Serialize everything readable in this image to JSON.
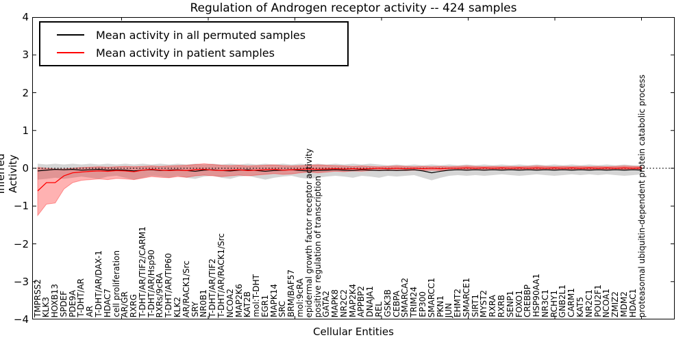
{
  "title": "Regulation of Androgen receptor activity -- 424 samples",
  "axes": {
    "xlabel": "Cellular Entities",
    "ylabel": "Inferred Activity",
    "yticks": [
      "4",
      "3",
      "2",
      "1",
      "0",
      "−1",
      "−2",
      "−3",
      "−4"
    ],
    "ylim": [
      -4,
      4
    ],
    "grid": false
  },
  "legend": {
    "position": "upper-left",
    "items": [
      {
        "label": "Mean activity in all permuted samples",
        "color": "#000000"
      },
      {
        "label": "Mean activity in patient samples",
        "color": "#ff0000"
      }
    ]
  },
  "chart_data": {
    "type": "line",
    "title": "Regulation of Androgen receptor activity -- 424 samples",
    "xlabel": "Cellular Entities",
    "ylabel": "Inferred Activity",
    "ylim": [
      -4,
      4
    ],
    "zero_line_dotted": true,
    "categories": [
      "TMPRSS2",
      "KLK3",
      "HOXB13",
      "SPDEF",
      "PDE9A",
      "T-DHT/AR",
      "AR",
      "T-DHT/AR/DAX-1",
      "HDAC7",
      "cell proliferation",
      "AR/GR",
      "RXRG",
      "T-DHT/AR/TIF2/CARM1",
      "T-DHT/AR/Hsp90",
      "RXRs/9cRA",
      "T-DHT/AR/TIP60",
      "KLK2",
      "AR/RACK1/Src",
      "SRY",
      "NR0B1",
      "T-DHT/AR/TIF2",
      "T-DHT/AR/RACK1/Src",
      "NCOA2",
      "MAP2K6",
      "KAT2B",
      "mol:T-DHT",
      "EGR1",
      "MAPK14",
      "SRC",
      "BRM/BAF57",
      "mol:9cRA",
      "epidermal growth factor receptor activity",
      "positive regulation of transcription",
      "GATA2",
      "MAPK8",
      "NR2C2",
      "MAP2K4",
      "APPBP2",
      "DNAJA1",
      "REL",
      "GSK3B",
      "CEBPA",
      "SMARCA2",
      "TRIM24",
      "EP300",
      "SMARCC1",
      "PKN1",
      "JUN",
      "EHMT2",
      "SMARCE1",
      "SIRT1",
      "MYST2",
      "RXRA",
      "RXRB",
      "SENP1",
      "FOXO1",
      "CREBBP",
      "HSP90AA1",
      "NR3C1",
      "RCHY1",
      "GNB2L1",
      "CARM1",
      "KAT5",
      "NR2C1",
      "POU2F1",
      "NCOA1",
      "ZMIZ2",
      "MDM2",
      "HDAC1",
      "proteasomal ubiquitin-dependent protein catabolic process"
    ],
    "series": [
      {
        "name": "Mean activity in all permuted samples",
        "color": "#000000",
        "band_color": "#888888",
        "values": [
          -0.07,
          -0.05,
          -0.03,
          -0.04,
          -0.03,
          -0.05,
          -0.04,
          -0.03,
          -0.05,
          -0.04,
          -0.05,
          -0.07,
          -0.05,
          -0.04,
          -0.06,
          -0.05,
          -0.04,
          -0.06,
          -0.08,
          -0.05,
          -0.04,
          -0.06,
          -0.07,
          -0.05,
          -0.04,
          -0.06,
          -0.08,
          -0.06,
          -0.05,
          -0.04,
          -0.06,
          -0.07,
          -0.06,
          -0.05,
          -0.04,
          -0.05,
          -0.06,
          -0.04,
          -0.05,
          -0.06,
          -0.05,
          -0.06,
          -0.05,
          -0.04,
          -0.07,
          -0.12,
          -0.08,
          -0.05,
          -0.04,
          -0.05,
          -0.04,
          -0.05,
          -0.04,
          -0.05,
          -0.04,
          -0.05,
          -0.04,
          -0.05,
          -0.04,
          -0.05,
          -0.04,
          -0.05,
          -0.04,
          -0.05,
          -0.04,
          -0.05,
          -0.04,
          -0.05,
          -0.04,
          -0.05
        ],
        "band_low": [
          -0.3,
          -0.28,
          -0.25,
          -0.28,
          -0.25,
          -0.22,
          -0.25,
          -0.28,
          -0.22,
          -0.2,
          -0.25,
          -0.3,
          -0.25,
          -0.2,
          -0.22,
          -0.25,
          -0.2,
          -0.25,
          -0.28,
          -0.22,
          -0.2,
          -0.25,
          -0.28,
          -0.22,
          -0.2,
          -0.25,
          -0.3,
          -0.25,
          -0.22,
          -0.2,
          -0.25,
          -0.28,
          -0.25,
          -0.22,
          -0.2,
          -0.22,
          -0.25,
          -0.2,
          -0.22,
          -0.25,
          -0.2,
          -0.22,
          -0.2,
          -0.18,
          -0.25,
          -0.32,
          -0.25,
          -0.2,
          -0.18,
          -0.2,
          -0.18,
          -0.2,
          -0.18,
          -0.16,
          -0.18,
          -0.2,
          -0.18,
          -0.16,
          -0.18,
          -0.2,
          -0.18,
          -0.16,
          -0.18,
          -0.16,
          -0.18,
          -0.16,
          -0.18,
          -0.2,
          -0.18,
          -0.16
        ],
        "band_high": [
          0.12,
          0.1,
          0.12,
          0.1,
          0.12,
          0.1,
          0.12,
          0.1,
          0.12,
          0.1,
          0.12,
          0.1,
          0.12,
          0.1,
          0.12,
          0.1,
          0.12,
          0.1,
          0.12,
          0.1,
          0.12,
          0.1,
          0.12,
          0.1,
          0.12,
          0.1,
          0.12,
          0.1,
          0.12,
          0.1,
          0.12,
          0.1,
          0.12,
          0.1,
          0.12,
          0.1,
          0.12,
          0.1,
          0.12,
          0.1,
          0.08,
          0.1,
          0.08,
          0.1,
          0.08,
          0.1,
          0.08,
          0.1,
          0.08,
          0.1,
          0.08,
          0.1,
          0.08,
          0.1,
          0.08,
          0.1,
          0.08,
          0.1,
          0.08,
          0.1,
          0.08,
          0.1,
          0.08,
          0.1,
          0.08,
          0.1,
          0.08,
          0.1,
          0.08,
          0.08
        ]
      },
      {
        "name": "Mean activity in patient samples",
        "color": "#ff0000",
        "band_color": "#ff0000",
        "values": [
          -0.6,
          -0.38,
          -0.38,
          -0.2,
          -0.12,
          -0.1,
          -0.08,
          -0.07,
          -0.08,
          -0.06,
          -0.07,
          -0.09,
          -0.05,
          -0.03,
          -0.05,
          -0.06,
          -0.05,
          -0.06,
          -0.04,
          -0.03,
          -0.05,
          -0.06,
          -0.05,
          -0.04,
          -0.06,
          -0.05,
          -0.04,
          -0.03,
          -0.05,
          -0.04,
          -0.03,
          -0.02,
          -0.03,
          -0.02,
          -0.01,
          -0.02,
          -0.01,
          -0.02,
          -0.01,
          0.0,
          -0.01,
          0.0,
          -0.01,
          0.0,
          -0.01,
          0.0,
          -0.01,
          0.0,
          0.0,
          0.01,
          0.0,
          0.01,
          0.0,
          0.01,
          0.0,
          0.01,
          0.0,
          0.01,
          0.0,
          0.01,
          0.0,
          0.01,
          0.0,
          0.01,
          0.0,
          0.01,
          0.0,
          0.01,
          0.0,
          0.01
        ],
        "band_low": [
          -1.25,
          -0.95,
          -0.92,
          -0.55,
          -0.38,
          -0.32,
          -0.3,
          -0.28,
          -0.3,
          -0.27,
          -0.28,
          -0.3,
          -0.26,
          -0.22,
          -0.24,
          -0.25,
          -0.22,
          -0.24,
          -0.2,
          -0.18,
          -0.2,
          -0.22,
          -0.2,
          -0.18,
          -0.2,
          -0.18,
          -0.16,
          -0.14,
          -0.16,
          -0.15,
          -0.12,
          -0.1,
          -0.12,
          -0.1,
          -0.08,
          -0.09,
          -0.07,
          -0.08,
          -0.06,
          -0.05,
          -0.06,
          -0.05,
          -0.06,
          -0.05,
          -0.06,
          -0.05,
          -0.06,
          -0.05,
          -0.04,
          -0.05,
          -0.04,
          -0.05,
          -0.04,
          -0.03,
          -0.04,
          -0.03,
          -0.04,
          -0.03,
          -0.04,
          -0.03,
          -0.04,
          -0.03,
          -0.02,
          -0.03,
          -0.02,
          -0.03,
          -0.02,
          -0.03,
          -0.02,
          -0.03
        ],
        "band_high": [
          0.02,
          0.0,
          -0.02,
          -0.02,
          0.0,
          0.02,
          0.03,
          0.04,
          0.03,
          0.04,
          0.05,
          0.04,
          0.05,
          0.06,
          0.05,
          0.06,
          0.07,
          0.08,
          0.1,
          0.12,
          0.1,
          0.08,
          0.07,
          0.08,
          0.06,
          0.07,
          0.08,
          0.09,
          0.07,
          0.06,
          0.07,
          0.08,
          0.09,
          0.08,
          0.07,
          0.06,
          0.05,
          0.06,
          0.05,
          0.04,
          0.05,
          0.06,
          0.05,
          0.04,
          0.05,
          0.04,
          0.05,
          0.04,
          0.05,
          0.06,
          0.05,
          0.04,
          0.05,
          0.04,
          0.05,
          0.04,
          0.05,
          0.06,
          0.05,
          0.04,
          0.05,
          0.04,
          0.05,
          0.04,
          0.05,
          0.04,
          0.05,
          0.06,
          0.05,
          0.04
        ]
      }
    ]
  }
}
